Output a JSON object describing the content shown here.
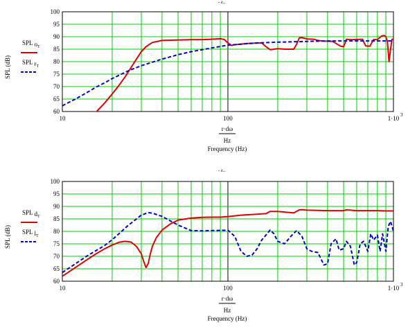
{
  "colors": {
    "grid": "#00cc00",
    "red_series": "#e00000",
    "blue_series": "#0000cc",
    "axes": "#000000",
    "background": "#ffffff"
  },
  "chart_data": [
    {
      "type": "line",
      "title": "",
      "title_marker": "- ƨ..",
      "xlabel_lines": [
        "r·dω",
        "Hz",
        "Frequency (Hz)"
      ],
      "ylabel": "SPL (dB)",
      "xscale": "log",
      "xlim": [
        10,
        1000
      ],
      "ylim": [
        60,
        100
      ],
      "grid": true,
      "legend_position": "left",
      "x_tick_labels": [
        "10",
        "100",
        "1·10"
      ],
      "x_tick_sup": "3",
      "y_tick_labels": [
        "60",
        "65",
        "70",
        "75",
        "80",
        "85",
        "90",
        "95",
        "100"
      ],
      "series": [
        {
          "name": "SPL o_T",
          "legend_main": "SPL",
          "legend_sub": "o",
          "legend_subsub": "T",
          "style": "solid",
          "color": "#e00000",
          "x": [
            16,
            18,
            20,
            22,
            24,
            26,
            28,
            30,
            32,
            35,
            40,
            50,
            60,
            70,
            80,
            90,
            95,
            100,
            105,
            110,
            120,
            130,
            140,
            160,
            170,
            180,
            190,
            200,
            220,
            250,
            260,
            270,
            280,
            300,
            330,
            350,
            370,
            400,
            430,
            480,
            500,
            520,
            550,
            600,
            650,
            680,
            720,
            760,
            800,
            850,
            880,
            900,
            920,
            940,
            960,
            980,
            1000
          ],
          "y": [
            59.8,
            63.4,
            67,
            70.5,
            74,
            77.6,
            81,
            84,
            86,
            87.7,
            88.5,
            88.7,
            88.8,
            88.8,
            89,
            89.2,
            88.9,
            87.5,
            86.5,
            86.8,
            87,
            87.3,
            87.4,
            87.5,
            86,
            84.8,
            85,
            85.2,
            85,
            85,
            87,
            89.5,
            89.6,
            89.1,
            89,
            88.5,
            88.3,
            88.2,
            88.1,
            86.2,
            86,
            89,
            88.8,
            88.9,
            89,
            86.3,
            86.2,
            88.9,
            88.8,
            90.3,
            90.5,
            90,
            88,
            80,
            85,
            89,
            89
          ]
        },
        {
          "name": "SPL r_T",
          "legend_main": "SPL",
          "legend_sub": "r",
          "legend_subsub": "T",
          "style": "dashed",
          "color": "#0000cc",
          "x": [
            10,
            12,
            14,
            16,
            18,
            20,
            25,
            30,
            40,
            50,
            60,
            80,
            100,
            150,
            200,
            300,
            400,
            500,
            600,
            700,
            800,
            900,
            1000
          ],
          "y": [
            62.3,
            65,
            67.5,
            69.8,
            71.5,
            73.2,
            76.3,
            78.4,
            81,
            82.8,
            84,
            85.5,
            86.6,
            87.5,
            87.8,
            88.1,
            88.3,
            88.3,
            88.3,
            88.3,
            88.3,
            88.3,
            88.3
          ]
        }
      ]
    },
    {
      "type": "line",
      "title": "",
      "title_marker": "- ƨ..",
      "xlabel_lines": [
        "r·dω",
        "Hz",
        "Frequency (Hz)"
      ],
      "ylabel": "SPL (dB)",
      "xscale": "log",
      "xlim": [
        10,
        1000
      ],
      "ylim": [
        60,
        100
      ],
      "grid": true,
      "legend_position": "left",
      "x_tick_labels": [
        "10",
        "100",
        "1·10"
      ],
      "x_tick_sup": "3",
      "y_tick_labels": [
        "60",
        "65",
        "70",
        "75",
        "80",
        "85",
        "90",
        "95",
        "100"
      ],
      "series": [
        {
          "name": "SPL d_T",
          "legend_main": "SPL",
          "legend_sub": "d",
          "legend_subsub": "T",
          "style": "solid",
          "color": "#e00000",
          "x": [
            10,
            12,
            14,
            16,
            18,
            20,
            22,
            24,
            26,
            28,
            30,
            31,
            32,
            33,
            34,
            35,
            37,
            40,
            45,
            50,
            60,
            70,
            80,
            90,
            100,
            120,
            150,
            170,
            180,
            200,
            250,
            270,
            280,
            300,
            400,
            500,
            520,
            600,
            700,
            800,
            900,
            1000
          ],
          "y": [
            62,
            65.5,
            68.5,
            71,
            73,
            74.5,
            75.6,
            76,
            75.7,
            74,
            71,
            68,
            65.5,
            67,
            71,
            74,
            77.5,
            80.5,
            83,
            84.5,
            85.3,
            85.6,
            85.7,
            85.7,
            85.9,
            86.5,
            86.9,
            87.1,
            88,
            88,
            87.4,
            88.6,
            88.7,
            88.5,
            88.3,
            88.3,
            88.6,
            88.3,
            88.3,
            88.3,
            88.2,
            88.2
          ]
        },
        {
          "name": "SPL l_T",
          "legend_main": "SPL",
          "legend_sub": "l",
          "legend_subsub": "T",
          "style": "dashed",
          "color": "#0000cc",
          "x": [
            10,
            12,
            14,
            16,
            18,
            20,
            25,
            30,
            33,
            35,
            40,
            50,
            60,
            70,
            80,
            90,
            100,
            110,
            120,
            130,
            140,
            150,
            160,
            180,
            190,
            200,
            220,
            240,
            260,
            280,
            300,
            320,
            350,
            380,
            400,
            420,
            450,
            470,
            500,
            520,
            550,
            580,
            600,
            630,
            660,
            700,
            730,
            760,
            800,
            830,
            860,
            900,
            930,
            960,
            1000
          ],
          "y": [
            63.5,
            67,
            70,
            72.3,
            74.3,
            76.6,
            82.4,
            86.5,
            87.5,
            87.3,
            86,
            82.5,
            80.3,
            80.2,
            80.3,
            80.4,
            80.5,
            78,
            72,
            70,
            70.5,
            73,
            76.5,
            80.5,
            79,
            76,
            75,
            78,
            80.3,
            78,
            73,
            72,
            71.5,
            66.5,
            67,
            75,
            77,
            72.5,
            73,
            76,
            74,
            66.5,
            67.5,
            75,
            76,
            72,
            79,
            76.5,
            78.5,
            72,
            79,
            72,
            82,
            84,
            80
          ]
        }
      ]
    }
  ]
}
